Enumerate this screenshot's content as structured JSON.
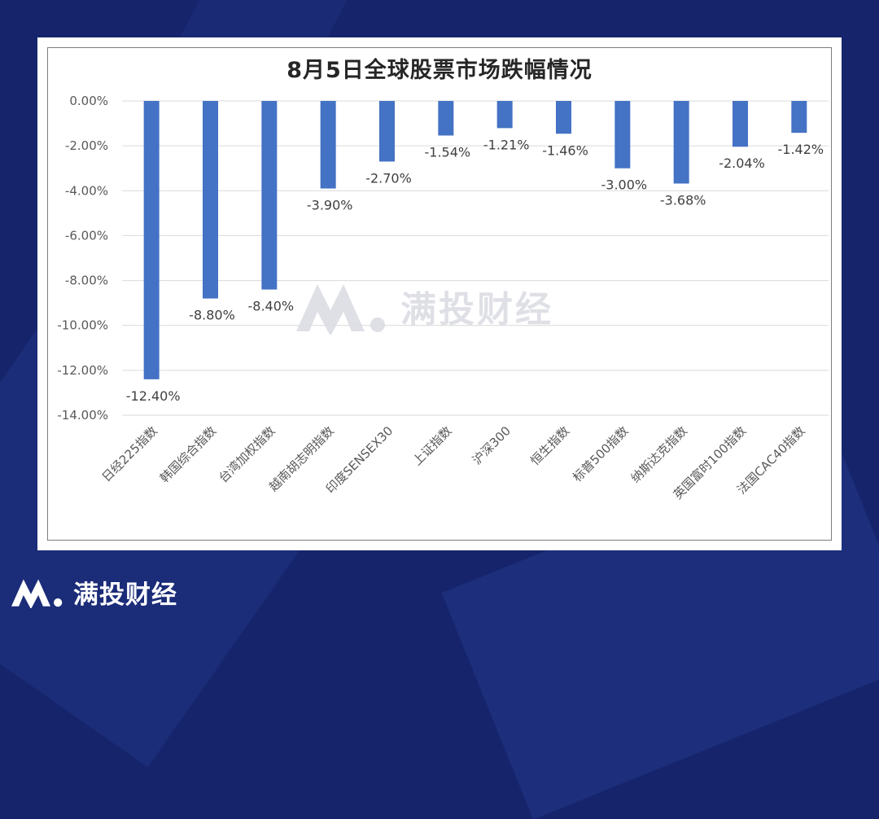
{
  "brand": {
    "name": "满投财经",
    "logo_icon": "mountain-m-logo-icon"
  },
  "colors": {
    "background": "#16256b",
    "bar": "#4472c4",
    "gridline": "#d9d9d9",
    "text": "#595959",
    "watermark": "#dcdde4"
  },
  "chart_data": {
    "type": "bar",
    "title": "8月5日全球股票市场跌幅情况",
    "categories": [
      "日经225指数",
      "韩国综合指数",
      "台湾加权指数",
      "越南胡志明指数",
      "印度SENSEX30",
      "上证指数",
      "沪深300",
      "恒生指数",
      "标普500指数",
      "纳斯达克指数",
      "英国富时100指数",
      "法国CAC40指数"
    ],
    "values": [
      -12.4,
      -8.8,
      -8.4,
      -3.9,
      -2.7,
      -1.54,
      -1.21,
      -1.46,
      -3.0,
      -3.68,
      -2.04,
      -1.42
    ],
    "data_labels": [
      "-12.40%",
      "-8.80%",
      "-8.40%",
      "-3.90%",
      "-2.70%",
      "-1.54%",
      "-1.21%",
      "-1.46%",
      "-3.00%",
      "-3.68%",
      "-2.04%",
      "-1.42%"
    ],
    "y_ticks": [
      0,
      -2,
      -4,
      -6,
      -8,
      -10,
      -12,
      -14
    ],
    "y_tick_labels": [
      "0.00%",
      "-2.00%",
      "-4.00%",
      "-6.00%",
      "-8.00%",
      "-10.00%",
      "-12.00%",
      "-14.00%"
    ],
    "ylim": [
      -14,
      0
    ],
    "xlabel": "",
    "ylabel": "",
    "grid": true,
    "legend": "none"
  }
}
